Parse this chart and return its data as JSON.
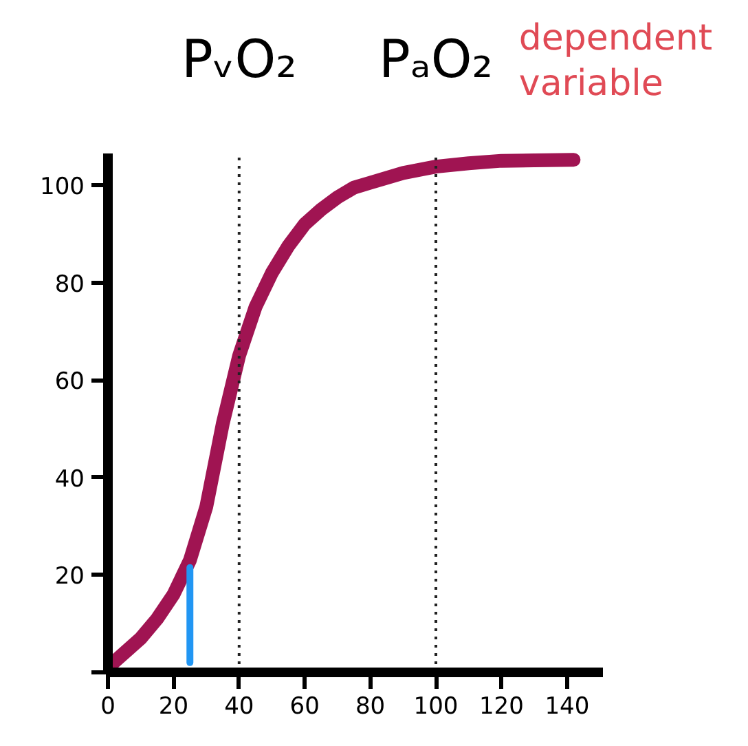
{
  "chart_data": {
    "type": "line",
    "x": [
      0,
      10,
      15,
      20,
      25,
      30,
      35,
      40,
      45,
      50,
      55,
      60,
      65,
      70,
      75,
      80,
      90,
      100,
      110,
      120,
      130,
      142
    ],
    "series": [
      {
        "color": "#a01452",
        "values": [
          1,
          7,
          11,
          16,
          23,
          34,
          51,
          65,
          75,
          82,
          87.5,
          92,
          95,
          97.5,
          99.5,
          100.5,
          102.5,
          103.8,
          104.5,
          105,
          105.1,
          105.2
        ]
      },
      {
        "color": "#2196f3",
        "x": [
          25,
          25
        ],
        "values": [
          2,
          21.5
        ]
      }
    ],
    "xlim": [
      0,
      151
    ],
    "ylim": [
      0,
      106.6
    ],
    "xticks": [
      0,
      20,
      40,
      60,
      80,
      100,
      120,
      140
    ],
    "yticks": [
      {
        "value": 0,
        "label": null
      },
      20,
      40,
      60,
      80,
      100
    ],
    "ref_lines": [
      {
        "axis": "x",
        "value": 40,
        "label": "PᵥO₂",
        "color": "#222222",
        "line_style": "dotted"
      },
      {
        "axis": "x",
        "value": 100,
        "label": "PₐO₂",
        "color": "#222222",
        "line_style": "dotted"
      }
    ],
    "annotations": [
      "dependent\nvariable"
    ],
    "grid": false,
    "marker": "none",
    "line_style": "solid"
  }
}
